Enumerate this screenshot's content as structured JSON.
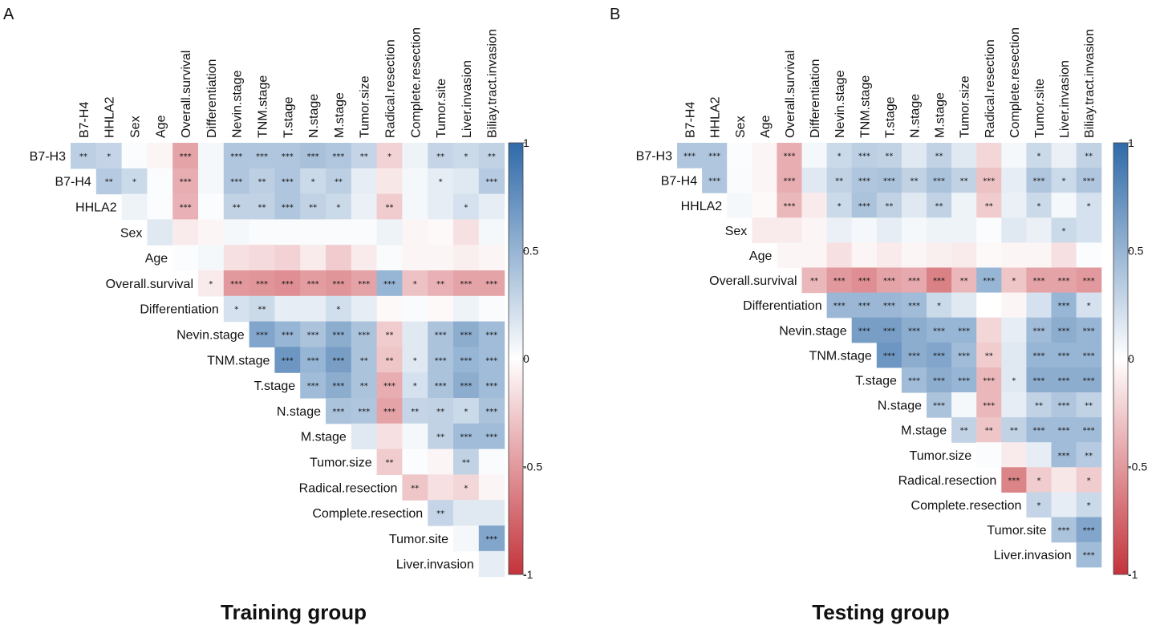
{
  "chart_data": [
    {
      "type": "heatmap",
      "panel_label": "A",
      "title": "Training group",
      "row_labels": [
        "B7-H3",
        "B7-H4",
        "HHLA2",
        "Sex",
        "Age",
        "Overall.survival",
        "Differentiation",
        "Nevin.stage",
        "TNM.stage",
        "T.stage",
        "N.stage",
        "M.stage",
        "Tumor.size",
        "Radical.resection",
        "Complete.resection",
        "Tumor.site",
        "Liver.invasion"
      ],
      "col_labels": [
        "B7-H4",
        "HHLA2",
        "Sex",
        "Age",
        "Overall.survival",
        "Differentiation",
        "Nevin.stage",
        "TNM.stage",
        "T.stage",
        "N.stage",
        "M.stage",
        "Tumor.size",
        "Radical.resection",
        "Complete.resection",
        "Tumor.site",
        "Liver.invasion",
        "Biliay.tract.invasion"
      ],
      "layout": "upper-triangle, row i starts at column i",
      "color_scale": {
        "min": -1,
        "max": 1,
        "ticks": [
          "1",
          "0.5",
          "0",
          "-0.5",
          "-1"
        ],
        "low_color": "#c4333b",
        "mid_color": "#ffffff",
        "high_color": "#2f6aa8"
      },
      "rows": [
        {
          "values": [
            0.32,
            0.28,
            0.02,
            -0.05,
            -0.45,
            0.05,
            0.38,
            0.38,
            0.38,
            0.42,
            0.38,
            0.28,
            -0.22,
            0.08,
            0.28,
            0.25,
            0.3
          ],
          "stars": [
            "**",
            "*",
            "",
            "",
            "***",
            "",
            "***",
            "***",
            "***",
            "***",
            "***",
            "**",
            "*",
            "",
            "**",
            "*",
            "**"
          ]
        },
        {
          "values": [
            0.35,
            0.25,
            0.02,
            -0.4,
            0.05,
            0.38,
            0.32,
            0.38,
            0.25,
            0.32,
            0.12,
            -0.12,
            0.05,
            0.12,
            0.15,
            0.35
          ],
          "stars": [
            "**",
            "*",
            "",
            "***",
            "",
            "***",
            "**",
            "***",
            "*",
            "**",
            "",
            "",
            "",
            "*",
            "",
            "***"
          ]
        },
        {
          "values": [
            0.08,
            0.02,
            -0.38,
            0.02,
            0.3,
            0.3,
            0.38,
            0.3,
            0.25,
            0.1,
            -0.25,
            0.05,
            0.12,
            0.2,
            0.12
          ],
          "stars": [
            "",
            "",
            "***",
            "",
            "**",
            "**",
            "***",
            "**",
            "*",
            "",
            "**",
            "",
            "",
            "*",
            ""
          ]
        },
        {
          "values": [
            0.15,
            -0.1,
            -0.05,
            0.05,
            0.03,
            0.03,
            0.03,
            0.03,
            0.03,
            0.08,
            -0.05,
            -0.03,
            -0.15,
            0.05
          ],
          "stars": [
            "",
            "",
            "",
            "",
            "",
            "",
            "",
            "",
            "",
            "",
            "",
            "",
            "",
            ""
          ]
        },
        {
          "values": [
            0.02,
            0.05,
            -0.15,
            -0.18,
            -0.22,
            -0.1,
            -0.25,
            -0.1,
            0.03,
            -0.05,
            -0.05,
            -0.08,
            -0.05
          ],
          "stars": [
            "",
            "",
            "",
            "",
            "",
            "",
            "",
            "",
            "",
            "",
            "",
            "",
            ""
          ]
        },
        {
          "values": [
            -0.1,
            -0.5,
            -0.52,
            -0.55,
            -0.48,
            -0.52,
            -0.45,
            0.5,
            -0.3,
            -0.38,
            -0.45,
            -0.45
          ],
          "stars": [
            "*",
            "***",
            "***",
            "***",
            "***",
            "***",
            "***",
            "***",
            "*",
            "**",
            "***",
            "***"
          ]
        },
        {
          "values": [
            0.2,
            0.25,
            0.12,
            0.12,
            0.22,
            0.12,
            -0.03,
            0.03,
            -0.03,
            0.08,
            0.03
          ],
          "stars": [
            "*",
            "**",
            "",
            "",
            "*",
            "",
            "",
            "",
            "",
            "",
            ""
          ]
        },
        {
          "values": [
            0.6,
            0.5,
            0.4,
            0.55,
            0.4,
            -0.25,
            0.15,
            0.4,
            0.55,
            0.45
          ],
          "stars": [
            "***",
            "***",
            "***",
            "***",
            "***",
            "**",
            "",
            "***",
            "***",
            "***"
          ]
        },
        {
          "values": [
            0.7,
            0.5,
            0.65,
            0.4,
            -0.28,
            0.15,
            0.4,
            0.5,
            0.45
          ],
          "stars": [
            "***",
            "***",
            "***",
            "**",
            "**",
            "*",
            "***",
            "***",
            "***"
          ]
        },
        {
          "values": [
            0.45,
            0.55,
            0.4,
            -0.4,
            0.2,
            0.4,
            0.55,
            0.45
          ],
          "stars": [
            "***",
            "***",
            "**",
            "***",
            "*",
            "***",
            "***",
            "***"
          ]
        },
        {
          "values": [
            0.4,
            0.38,
            -0.45,
            0.28,
            0.3,
            0.25,
            0.4
          ],
          "stars": [
            "***",
            "***",
            "***",
            "**",
            "**",
            "*",
            "***"
          ]
        },
        {
          "values": [
            0.15,
            -0.15,
            0.05,
            0.3,
            0.45,
            0.45
          ],
          "stars": [
            "",
            "",
            "",
            "**",
            "***",
            "***"
          ]
        },
        {
          "values": [
            -0.25,
            0.02,
            -0.05,
            0.3,
            0.03
          ],
          "stars": [
            "**",
            "",
            "",
            "**",
            ""
          ]
        },
        {
          "values": [
            -0.28,
            -0.15,
            -0.2,
            -0.05
          ],
          "stars": [
            "**",
            "",
            "*",
            ""
          ]
        },
        {
          "values": [
            0.28,
            0.15,
            0.15
          ],
          "stars": [
            "**",
            "",
            ""
          ]
        },
        {
          "values": [
            0.05,
            0.6
          ],
          "stars": [
            "",
            "***"
          ]
        },
        {
          "values": [
            0.12
          ],
          "stars": [
            ""
          ]
        }
      ]
    },
    {
      "type": "heatmap",
      "panel_label": "B",
      "title": "Testing group",
      "row_labels": [
        "B7-H3",
        "B7-H4",
        "HHLA2",
        "Sex",
        "Age",
        "Overall.survival",
        "Differentiation",
        "Nevin.stage",
        "TNM.stage",
        "T.stage",
        "N.stage",
        "M.stage",
        "Tumor.size",
        "Radical.resection",
        "Complete.resection",
        "Tumor.site",
        "Liver.invasion"
      ],
      "col_labels": [
        "B7-H4",
        "HHLA2",
        "Sex",
        "Age",
        "Overall.survival",
        "Differentiation",
        "Nevin.stage",
        "TNM.stage",
        "T.stage",
        "N.stage",
        "M.stage",
        "Tumor.size",
        "Radical.resection",
        "Complete.resection",
        "Tumor.site",
        "Liver.invasion",
        "Biliay.tract.invasion"
      ],
      "layout": "upper-triangle, row i starts at column i",
      "color_scale": {
        "min": -1,
        "max": 1,
        "ticks": [
          "1",
          "0.5",
          "0",
          "-0.5",
          "-1"
        ],
        "low_color": "#c4333b",
        "mid_color": "#ffffff",
        "high_color": "#2f6aa8"
      },
      "rows": [
        {
          "values": [
            0.38,
            0.38,
            0.02,
            -0.05,
            -0.4,
            0.05,
            0.25,
            0.32,
            0.3,
            0.15,
            0.3,
            0.15,
            -0.2,
            0.05,
            0.25,
            0.1,
            0.3
          ],
          "stars": [
            "***",
            "***",
            "",
            "",
            "***",
            "",
            "*",
            "***",
            "**",
            "",
            "**",
            "",
            "",
            "",
            "*",
            "",
            "**"
          ]
        },
        {
          "values": [
            0.38,
            0.03,
            -0.05,
            -0.4,
            0.15,
            0.3,
            0.38,
            0.4,
            0.3,
            0.4,
            0.3,
            -0.3,
            0.12,
            0.38,
            0.25,
            0.38
          ],
          "stars": [
            "***",
            "",
            "",
            "***",
            "",
            "**",
            "***",
            "***",
            "**",
            "***",
            "**",
            "***",
            "",
            "***",
            "*",
            "***"
          ]
        },
        {
          "values": [
            0.05,
            -0.03,
            -0.35,
            -0.1,
            0.25,
            0.4,
            0.3,
            0.15,
            0.3,
            0.08,
            -0.25,
            0.1,
            0.25,
            0.05,
            0.2
          ],
          "stars": [
            "",
            "",
            "***",
            "",
            "*",
            "***",
            "**",
            "",
            "**",
            "",
            "**",
            "",
            "*",
            "",
            "*"
          ]
        },
        {
          "values": [
            -0.1,
            -0.1,
            -0.05,
            0.1,
            0.05,
            0.12,
            0.05,
            0.08,
            0.08,
            0.02,
            0.15,
            0.1,
            0.25,
            0.2
          ],
          "stars": [
            "",
            "",
            "",
            "",
            "",
            "",
            "",
            "",
            "",
            "",
            "",
            "",
            "*",
            ""
          ]
        },
        {
          "values": [
            -0.05,
            -0.05,
            -0.15,
            -0.05,
            -0.1,
            -0.05,
            -0.08,
            -0.1,
            -0.03,
            -0.05,
            -0.05,
            -0.15,
            0.02
          ],
          "stars": [
            "",
            "",
            "",
            "",
            "",
            "",
            "",
            "",
            "",
            "",
            "",
            "",
            ""
          ]
        },
        {
          "values": [
            -0.35,
            -0.5,
            -0.55,
            -0.45,
            -0.42,
            -0.62,
            -0.35,
            0.5,
            -0.28,
            -0.45,
            -0.45,
            -0.5
          ],
          "stars": [
            "**",
            "***",
            "***",
            "***",
            "***",
            "***",
            "**",
            "***",
            "*",
            "***",
            "***",
            "***"
          ]
        },
        {
          "values": [
            0.48,
            0.48,
            0.48,
            0.45,
            0.25,
            0.15,
            0.0,
            -0.05,
            0.2,
            0.5,
            0.2
          ],
          "stars": [
            "***",
            "***",
            "***",
            "***",
            "*",
            "",
            "",
            "",
            "",
            "***",
            "*"
          ]
        },
        {
          "values": [
            0.65,
            0.65,
            0.55,
            0.5,
            0.5,
            -0.2,
            0.12,
            0.45,
            0.55,
            0.5
          ],
          "stars": [
            "***",
            "***",
            "***",
            "***",
            "***",
            "",
            "",
            "***",
            "***",
            "***"
          ]
        },
        {
          "values": [
            0.7,
            0.55,
            0.6,
            0.45,
            -0.25,
            0.15,
            0.5,
            0.5,
            0.5
          ],
          "stars": [
            "***",
            "***",
            "***",
            "***",
            "**",
            "",
            "***",
            "***",
            "***"
          ]
        },
        {
          "values": [
            0.45,
            0.55,
            0.5,
            -0.35,
            0.15,
            0.55,
            0.55,
            0.55
          ],
          "stars": [
            "***",
            "***",
            "***",
            "***",
            "*",
            "***",
            "***",
            "***"
          ]
        },
        {
          "values": [
            0.4,
            0.05,
            -0.35,
            0.12,
            0.3,
            0.38,
            0.3
          ],
          "stars": [
            "***",
            "",
            "***",
            "",
            "**",
            "***",
            "**"
          ]
        },
        {
          "values": [
            0.3,
            -0.28,
            0.3,
            0.45,
            0.45,
            0.45
          ],
          "stars": [
            "**",
            "**",
            "**",
            "***",
            "***",
            "***"
          ]
        },
        {
          "values": [
            0.02,
            -0.1,
            0.12,
            0.45,
            0.35
          ],
          "stars": [
            "",
            "",
            "",
            "***",
            "**"
          ]
        },
        {
          "values": [
            -0.6,
            -0.25,
            -0.12,
            -0.25
          ],
          "stars": [
            "***",
            "*",
            "",
            "*"
          ]
        },
        {
          "values": [
            0.28,
            0.12,
            0.25
          ],
          "stars": [
            "*",
            "",
            "*"
          ]
        },
        {
          "values": [
            0.4,
            0.6
          ],
          "stars": [
            "***",
            "***"
          ]
        },
        {
          "values": [
            0.45
          ],
          "stars": [
            "***"
          ]
        }
      ]
    }
  ]
}
